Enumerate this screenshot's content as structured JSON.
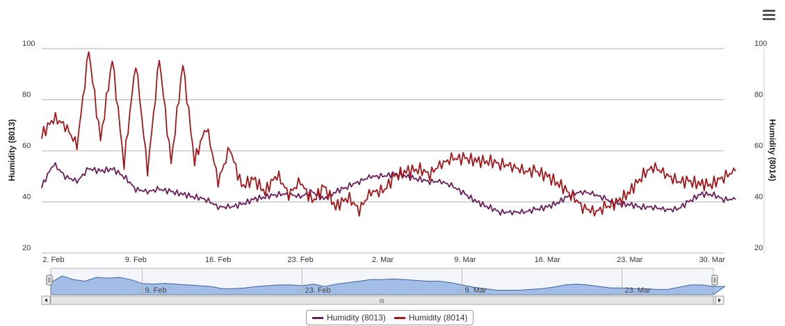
{
  "colors": {
    "series_8013": "#6a1b5a",
    "series_8014": "#a31518",
    "navigator_fill": "#a9c4ea",
    "navigator_line": "#3b5f9a",
    "grid": "#999999"
  },
  "toolbar": {
    "menu_icon": "hamburger-menu-icon"
  },
  "chart_data": {
    "type": "line",
    "x_type": "date",
    "x_tick_labels": [
      "2. Feb",
      "9. Feb",
      "16. Feb",
      "23. Feb",
      "2. Mar",
      "9. Mar",
      "16. Mar",
      "23. Mar",
      "30. Mar"
    ],
    "x_range": [
      "2015-02-01",
      "2015-03-31"
    ],
    "ylabel_left": "Humidity (8013)",
    "ylabel_right": "Humidity (8014)",
    "y_ticks": [
      20,
      40,
      60,
      80,
      100
    ],
    "ylim": [
      20,
      100
    ],
    "grid": true,
    "legend_position": "bottom-center",
    "series": [
      {
        "name": "Humidity (8013)",
        "points": [
          [
            "2015-02-01",
            46
          ],
          [
            "2015-02-02",
            55
          ],
          [
            "2015-02-03",
            50
          ],
          [
            "2015-02-04",
            48
          ],
          [
            "2015-02-05",
            53
          ],
          [
            "2015-02-06",
            52
          ],
          [
            "2015-02-07",
            53
          ],
          [
            "2015-02-08",
            50
          ],
          [
            "2015-02-09",
            45
          ],
          [
            "2015-02-10",
            44
          ],
          [
            "2015-02-11",
            45
          ],
          [
            "2015-02-12",
            44
          ],
          [
            "2015-02-13",
            43
          ],
          [
            "2015-02-14",
            42
          ],
          [
            "2015-02-15",
            41
          ],
          [
            "2015-02-16",
            38
          ],
          [
            "2015-02-17",
            38
          ],
          [
            "2015-02-18",
            39
          ],
          [
            "2015-02-19",
            41
          ],
          [
            "2015-02-20",
            42
          ],
          [
            "2015-02-21",
            43
          ],
          [
            "2015-02-22",
            43
          ],
          [
            "2015-02-23",
            42
          ],
          [
            "2015-02-24",
            44
          ],
          [
            "2015-02-25",
            41
          ],
          [
            "2015-02-26",
            44
          ],
          [
            "2015-02-27",
            46
          ],
          [
            "2015-02-28",
            48
          ],
          [
            "2015-03-01",
            50
          ],
          [
            "2015-03-02",
            50
          ],
          [
            "2015-03-03",
            51
          ],
          [
            "2015-03-04",
            50
          ],
          [
            "2015-03-05",
            49
          ],
          [
            "2015-03-06",
            48
          ],
          [
            "2015-03-07",
            48
          ],
          [
            "2015-03-08",
            46
          ],
          [
            "2015-03-09",
            43
          ],
          [
            "2015-03-10",
            40
          ],
          [
            "2015-03-11",
            38
          ],
          [
            "2015-03-12",
            36
          ],
          [
            "2015-03-13",
            36
          ],
          [
            "2015-03-14",
            36
          ],
          [
            "2015-03-15",
            37
          ],
          [
            "2015-03-16",
            38
          ],
          [
            "2015-03-17",
            40
          ],
          [
            "2015-03-18",
            43
          ],
          [
            "2015-03-19",
            44
          ],
          [
            "2015-03-20",
            43
          ],
          [
            "2015-03-21",
            41
          ],
          [
            "2015-03-22",
            39
          ],
          [
            "2015-03-23",
            39
          ],
          [
            "2015-03-24",
            38
          ],
          [
            "2015-03-25",
            38
          ],
          [
            "2015-03-26",
            37
          ],
          [
            "2015-03-27",
            37
          ],
          [
            "2015-03-28",
            40
          ],
          [
            "2015-03-29",
            43
          ],
          [
            "2015-03-30",
            43
          ],
          [
            "2015-03-31",
            41
          ],
          [
            "2015-04-01",
            41
          ]
        ]
      },
      {
        "name": "Humidity (8014)",
        "points": [
          [
            "2015-02-01",
            66
          ],
          [
            "2015-02-02",
            73
          ],
          [
            "2015-02-03",
            70
          ],
          [
            "2015-02-04",
            62
          ],
          [
            "2015-02-05",
            99
          ],
          [
            "2015-02-06",
            64
          ],
          [
            "2015-02-07",
            96
          ],
          [
            "2015-02-08",
            55
          ],
          [
            "2015-02-09",
            95
          ],
          [
            "2015-02-10",
            52
          ],
          [
            "2015-02-11",
            96
          ],
          [
            "2015-02-12",
            55
          ],
          [
            "2015-02-13",
            94
          ],
          [
            "2015-02-14",
            56
          ],
          [
            "2015-02-15",
            70
          ],
          [
            "2015-02-16",
            48
          ],
          [
            "2015-02-17",
            61
          ],
          [
            "2015-02-18",
            46
          ],
          [
            "2015-02-19",
            49
          ],
          [
            "2015-02-20",
            44
          ],
          [
            "2015-02-21",
            51
          ],
          [
            "2015-02-22",
            43
          ],
          [
            "2015-02-23",
            48
          ],
          [
            "2015-02-24",
            40
          ],
          [
            "2015-02-25",
            46
          ],
          [
            "2015-02-26",
            38
          ],
          [
            "2015-02-27",
            42
          ],
          [
            "2015-02-28",
            37
          ],
          [
            "2015-03-01",
            44
          ],
          [
            "2015-03-02",
            44
          ],
          [
            "2015-03-03",
            50
          ],
          [
            "2015-03-04",
            52
          ],
          [
            "2015-03-05",
            53
          ],
          [
            "2015-03-06",
            51
          ],
          [
            "2015-03-07",
            55
          ],
          [
            "2015-03-08",
            57
          ],
          [
            "2015-03-09",
            57
          ],
          [
            "2015-03-10",
            56
          ],
          [
            "2015-03-11",
            56
          ],
          [
            "2015-03-12",
            55
          ],
          [
            "2015-03-13",
            54
          ],
          [
            "2015-03-14",
            52
          ],
          [
            "2015-03-15",
            52
          ],
          [
            "2015-03-16",
            50
          ],
          [
            "2015-03-17",
            47
          ],
          [
            "2015-03-18",
            43
          ],
          [
            "2015-03-19",
            38
          ],
          [
            "2015-03-20",
            36
          ],
          [
            "2015-03-21",
            38
          ],
          [
            "2015-03-22",
            40
          ],
          [
            "2015-03-23",
            44
          ],
          [
            "2015-03-24",
            50
          ],
          [
            "2015-03-25",
            54
          ],
          [
            "2015-03-26",
            51
          ],
          [
            "2015-03-27",
            48
          ],
          [
            "2015-03-28",
            48
          ],
          [
            "2015-03-29",
            47
          ],
          [
            "2015-03-30",
            47
          ],
          [
            "2015-03-31",
            50
          ],
          [
            "2015-04-01",
            52
          ]
        ]
      }
    ],
    "navigator_tick_labels": [
      "9. Feb",
      "23. Feb",
      "9. Mar",
      "23. Mar"
    ],
    "scrollbar_grip": "III"
  },
  "legend": {
    "items": [
      {
        "label": "Humidity (8013)"
      },
      {
        "label": "Humidity (8014)"
      }
    ]
  }
}
